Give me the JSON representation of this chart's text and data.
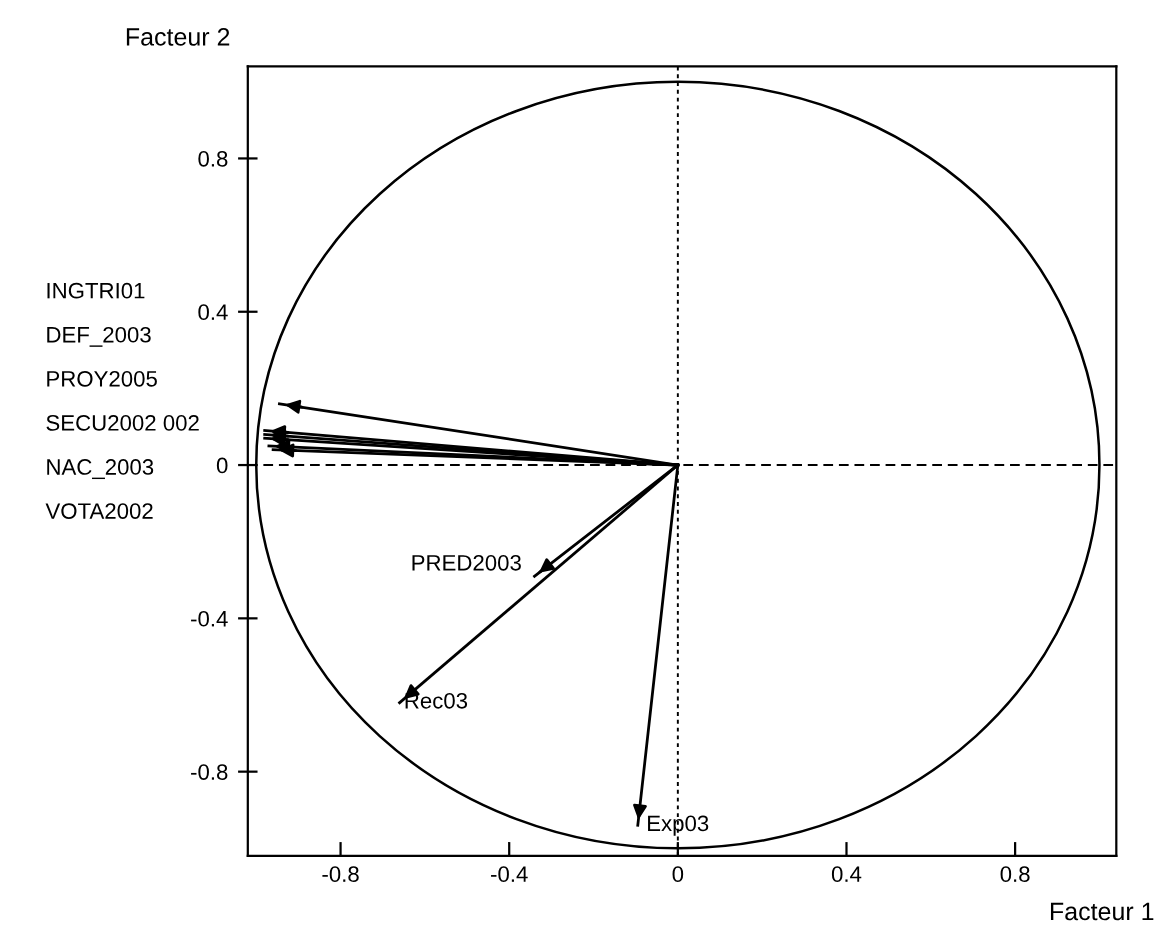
{
  "chart_data": {
    "type": "line",
    "xlabel": "Facteur 1",
    "ylabel": "Facteur 2",
    "xlim": [
      -1.02,
      1.04
    ],
    "ylim": [
      -1.02,
      1.04
    ],
    "xticks": [
      -0.8,
      -0.4,
      0,
      0.4,
      0.8
    ],
    "yticks": [
      -0.8,
      -0.4,
      0,
      0.4,
      0.8
    ],
    "grid": false,
    "legend": false,
    "marker": "none",
    "line_style": "solid",
    "ref_lines": [
      {
        "axis": "x",
        "value": 0,
        "line_style": "dotted",
        "color": "#000000"
      },
      {
        "axis": "y",
        "value": 0,
        "line_style": "dashed",
        "color": "#000000"
      }
    ],
    "annotations": [
      "INGTRI01",
      "DEF_2003",
      "PROY2005",
      "SECU2002 002",
      "NAC_2003",
      "VOTA2002",
      {
        "text": "PRED2003",
        "x": -0.34,
        "y": -0.29
      },
      {
        "text": "Rec03",
        "x": -0.66,
        "y": -0.62
      },
      {
        "text": "Exp03",
        "x": -0.095,
        "y": -0.94
      }
    ],
    "series": [
      {
        "color": "#000000",
        "x": [
          0,
          -0.945
        ],
        "values": [
          0,
          0.16
        ]
      },
      {
        "color": "#000000",
        "x": [
          0,
          -0.98
        ],
        "values": [
          0,
          0.09
        ]
      },
      {
        "color": "#000000",
        "x": [
          0,
          -0.98
        ],
        "values": [
          0,
          0.08
        ]
      },
      {
        "color": "#000000",
        "x": [
          0,
          -0.98
        ],
        "values": [
          0,
          0.07
        ]
      },
      {
        "color": "#000000",
        "x": [
          0,
          -0.97
        ],
        "values": [
          0,
          0.05
        ]
      },
      {
        "color": "#000000",
        "x": [
          0,
          -0.96
        ],
        "values": [
          0,
          0.04
        ]
      },
      {
        "color": "#000000",
        "x": [
          0,
          -0.34
        ],
        "values": [
          0,
          -0.29
        ]
      },
      {
        "color": "#000000",
        "x": [
          0,
          -0.66
        ],
        "values": [
          0,
          -0.62
        ]
      },
      {
        "color": "#000000",
        "x": [
          0,
          -0.095
        ],
        "values": [
          0,
          -0.94
        ]
      }
    ]
  }
}
